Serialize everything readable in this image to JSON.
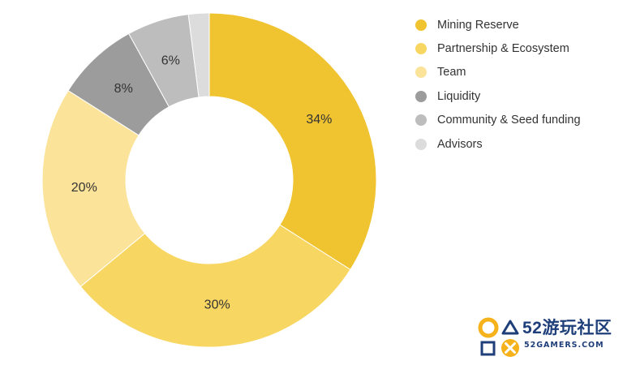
{
  "chart_data": {
    "type": "pie",
    "donut": true,
    "title": "",
    "legend_position": "right",
    "start_angle_deg": 0,
    "direction": "clockwise",
    "slices": [
      {
        "label": "Mining Reserve",
        "value": 34,
        "value_label": "34%",
        "color": "#f0c330",
        "show_label": true
      },
      {
        "label": "Partnership & Ecosystem",
        "value": 30,
        "value_label": "30%",
        "color": "#f8d662",
        "show_label": true
      },
      {
        "label": "Team",
        "value": 20,
        "value_label": "20%",
        "color": "#fce39a",
        "show_label": true
      },
      {
        "label": "Liquidity",
        "value": 8,
        "value_label": "8%",
        "color": "#9c9c9c",
        "show_label": true
      },
      {
        "label": "Community & Seed funding",
        "value": 6,
        "value_label": "6%",
        "color": "#bdbdbd",
        "show_label": true
      },
      {
        "label": "Advisors",
        "value": 2,
        "value_label": "",
        "color": "#dcdcdc",
        "show_label": false
      }
    ]
  },
  "watermark": {
    "main_text": "52游玩社区",
    "sub_text": "52GAMERS.COM",
    "logo_icon": "game-controller-symbols-icon",
    "logo_colors": {
      "circle": "#f6b21a",
      "triangle": "#1f3f7a",
      "square": "#1f3f7a",
      "cross": "#f6b21a"
    }
  }
}
